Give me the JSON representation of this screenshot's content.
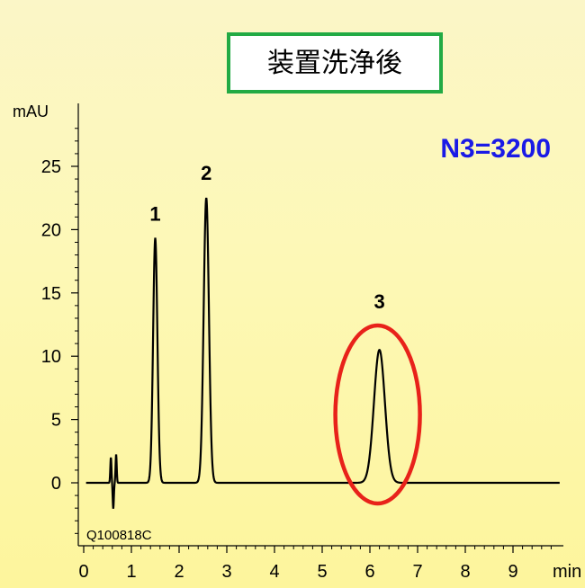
{
  "title": "装置洗浄後",
  "annotation_n": "N3=3200",
  "sample_id": "Q100818C",
  "colors": {
    "trace": "#000000",
    "title_border": "#22aa44",
    "highlight_ellipse": "#e8221a",
    "annotation_text": "#1a1ae6"
  },
  "chart_data": {
    "type": "line",
    "title": "装置洗浄後",
    "ylabel": "mAU",
    "xlabel": "min",
    "xlim": [
      0,
      10
    ],
    "ylim": [
      -4,
      29
    ],
    "x_ticks": [
      0,
      1,
      2,
      3,
      4,
      5,
      6,
      7,
      8,
      9
    ],
    "y_ticks": [
      0,
      5,
      10,
      15,
      20,
      25
    ],
    "baseline": 0,
    "injection_disturbance": [
      {
        "x": 0.57,
        "y": 2.0
      },
      {
        "x": 0.62,
        "y": -2.0
      },
      {
        "x": 0.68,
        "y": 2.2
      }
    ],
    "peaks": [
      {
        "label": "1",
        "retention_time": 1.5,
        "height": 19.3,
        "width_sigma": 0.045
      },
      {
        "label": "2",
        "retention_time": 2.57,
        "height": 22.5,
        "width_sigma": 0.055
      },
      {
        "label": "3",
        "retention_time": 6.2,
        "height": 10.5,
        "width_sigma": 0.115
      }
    ],
    "highlighted_peak": "3",
    "grid": false
  }
}
